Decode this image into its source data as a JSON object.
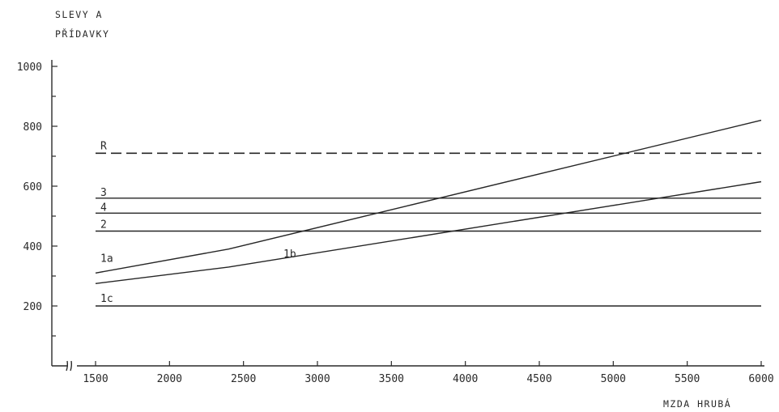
{
  "chart_data": {
    "type": "line",
    "xlabel": "MZDA HRUBÁ",
    "ylabel_lines": [
      "SLEVY A",
      "PŘÍDAVKY"
    ],
    "xlim": [
      1500,
      6000
    ],
    "ylim": [
      0,
      1000
    ],
    "x_ticks": [
      1500,
      2000,
      2500,
      3000,
      3500,
      4000,
      4500,
      5000,
      5500,
      6000
    ],
    "y_ticks": [
      200,
      400,
      600,
      800,
      1000
    ],
    "y_tick_labels": [
      "200",
      "400",
      "600",
      "800",
      "1000"
    ],
    "axis_break": true,
    "grid": false,
    "series": [
      {
        "name": "R",
        "style": "dashed",
        "x": [
          1500,
          6000
        ],
        "y": [
          710,
          710
        ]
      },
      {
        "name": "3",
        "style": "solid",
        "x": [
          1500,
          6000
        ],
        "y": [
          560,
          560
        ]
      },
      {
        "name": "4",
        "style": "solid",
        "x": [
          1500,
          6000
        ],
        "y": [
          510,
          510
        ]
      },
      {
        "name": "2",
        "style": "solid",
        "x": [
          1500,
          6000
        ],
        "y": [
          450,
          450
        ]
      },
      {
        "name": "1c",
        "style": "solid",
        "x": [
          1500,
          6000
        ],
        "y": [
          200,
          200
        ]
      },
      {
        "name": "1a",
        "style": "solid",
        "x": [
          1500,
          2400,
          6000
        ],
        "y": [
          310,
          390,
          820
        ]
      },
      {
        "name": "1b",
        "style": "solid",
        "x": [
          1500,
          2400,
          6000
        ],
        "y": [
          275,
          330,
          615
        ]
      }
    ]
  }
}
